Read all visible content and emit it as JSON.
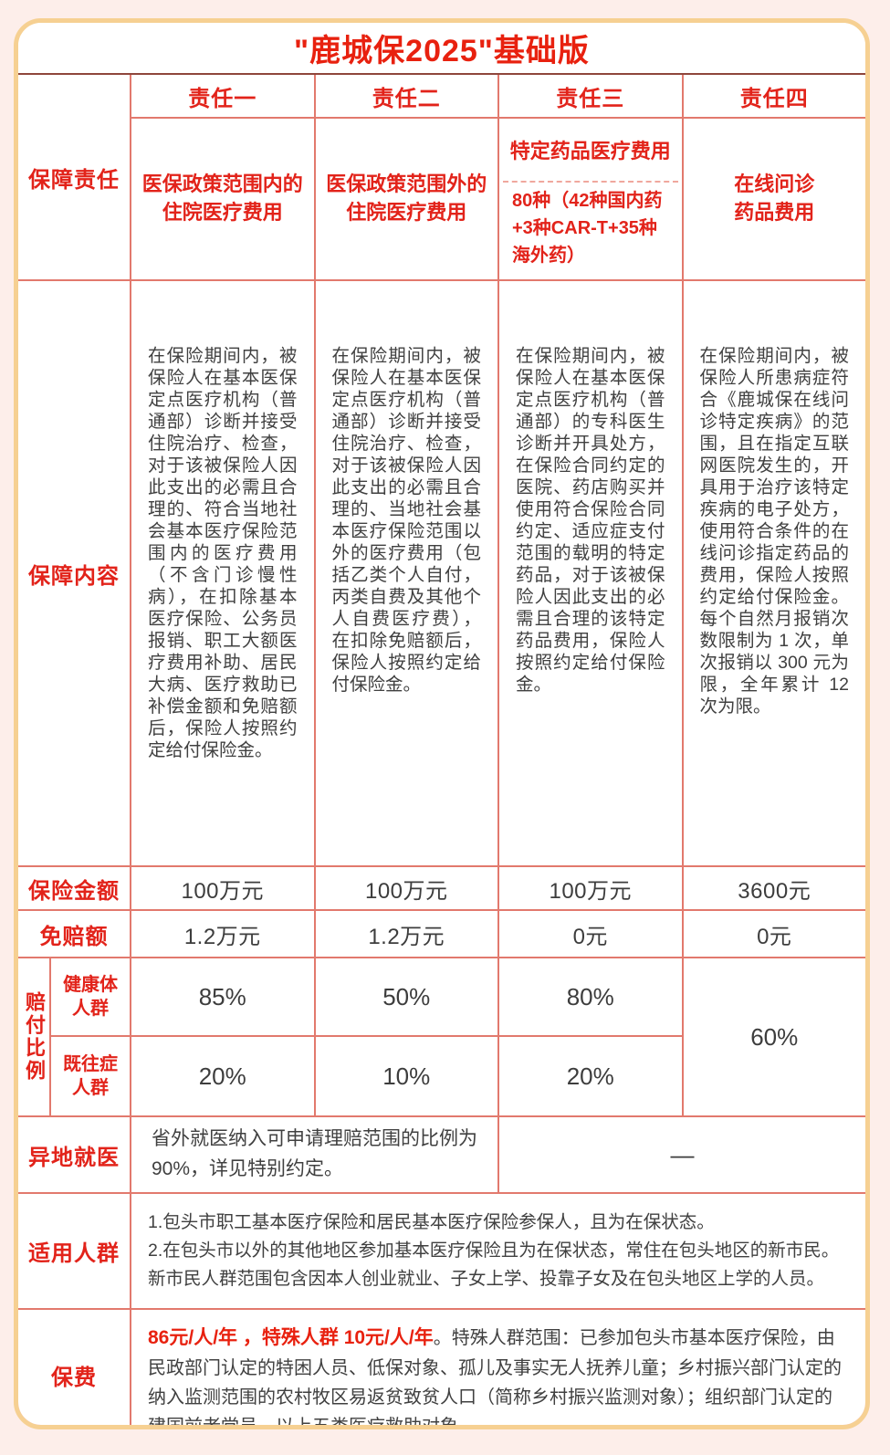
{
  "title": "\"鹿城保2025\"基础版",
  "colors": {
    "accent_red": "#e2231a",
    "title_red": "#e8210f",
    "dark_text": "#404040",
    "grid_line": "#e2796d",
    "title_rule": "#8e463c",
    "card_border": "#f6d092",
    "page_bg": "#fdeeea",
    "card_bg": "#ffffff"
  },
  "table": {
    "row_labels": {
      "coverage_duty": "保障责任",
      "coverage_content": "保障内容",
      "insured_amount": "保险金额",
      "deductible": "免赔额",
      "payout_ratio": "赔付比例",
      "healthy_group": "健康体\n人群",
      "preexisting_group": "既往症\n人群",
      "remote_medical": "异地就医",
      "applicable_people": "适用人群",
      "premium": "保费"
    },
    "duties": [
      {
        "name": "责任一",
        "desc": "医保政策范围内的\n住院医疗费用",
        "content": "在保险期间内，被保险人在基本医保定点医疗机构（普通部）诊断并接受住院治疗、检查，对于该被保险人因此支出的必需且合理的、符合当地社会基本医疗保险范围内的医疗费用（不含门诊慢性病），在扣除基本医疗保险、公务员报销、职工大额医疗费用补助、居民大病、医疗救助已补偿金额和免赔额后，保险人按照约定给付保险金。",
        "amount": "100万元",
        "deductible": "1.2万元",
        "healthy": "85%",
        "preexisting": "20%"
      },
      {
        "name": "责任二",
        "desc": "医保政策范围外的\n住院医疗费用",
        "content": "在保险期间内，被保险人在基本医保定点医疗机构（普通部）诊断并接受住院治疗、检查，对于该被保险人因此支出的必需且合理的、当地社会基本医疗保险范围以外的医疗费用（包括乙类个人自付，丙类自费及其他个人自费医疗费），在扣除免赔额后，保险人按照约定给付保险金。",
        "amount": "100万元",
        "deductible": "1.2万元",
        "healthy": "50%",
        "preexisting": "10%"
      },
      {
        "name": "责任三",
        "desc": "特定药品医疗费用",
        "note": "80种（42种国内药+3种CAR-T+35种海外药）",
        "content": "在保险期间内，被保险人在基本医保定点医疗机构（普通部）的专科医生诊断并开具处方，在保险合同约定的医院、药店购买并使用符合保险合同约定、适应症支付范围的载明的特定药品，对于该被保险人因此支出的必需且合理的该特定药品费用，保险人按照约定给付保险金。",
        "amount": "100万元",
        "deductible": "0元",
        "healthy": "80%",
        "preexisting": "20%"
      },
      {
        "name": "责任四",
        "desc": "在线问诊\n药品费用",
        "content": "在保险期间内，被保险人所患病症符合《鹿城保在线问诊特定疾病》的范围，且在指定互联网医院发生的，开具用于治疗该特定疾病的电子处方，使用符合条件的在线问诊指定药品的费用，保险人按照约定给付保险金。每个自然月报销次数限制为 1 次，单次报销以 300 元为限，全年累计 12 次为限。",
        "amount": "3600元",
        "deductible": "0元",
        "payout": "60%"
      }
    ],
    "remote_medical": {
      "text": "省外就医纳入可申请理赔范围的比例为90%，详见特别约定。",
      "duty34_value": "—"
    },
    "applicable_people": {
      "items": [
        "1.包头市职工基本医疗保险和居民基本医疗保险参保人，且为在保状态。",
        "2.在包头市以外的其他地区参加基本医疗保险且为在保状态，常住在包头地区的新市民。新市民人群范围包含因本人创业就业、子女上学、投靠子女及在包头地区上学的人员。"
      ]
    },
    "premium": {
      "highlight": "86元/人/年 ，特殊人群 10元/人/年",
      "detail": "。特殊人群范围：已参加包头市基本医疗保险，由民政部门认定的特困人员、低保对象、孤儿及事实无人抚养儿童；乡村振兴部门认定的纳入监测范围的农村牧区易返贫致贫人口（简称乡村振兴监测对象）；组织部门认定的建国前老党员，以上五类医疗救助对象。"
    }
  }
}
